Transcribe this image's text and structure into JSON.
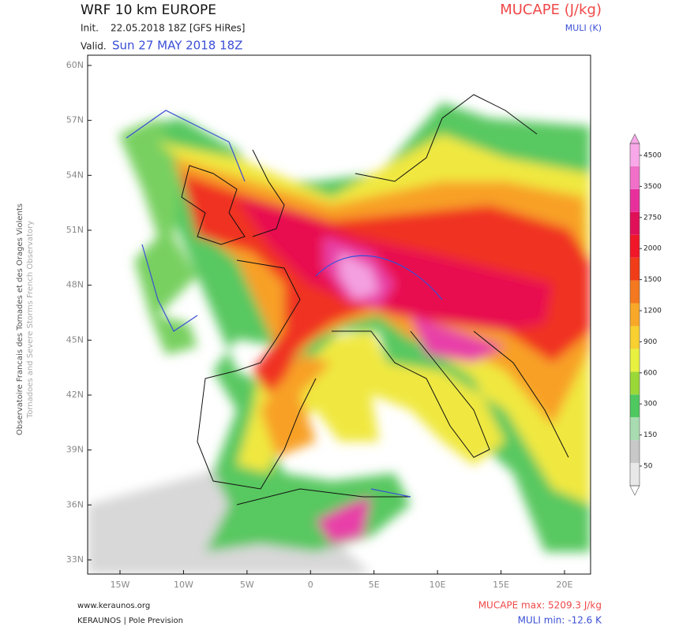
{
  "header": {
    "title": "WRF 10 km EUROPE",
    "init_label": "Init.",
    "init": "22.05.2018 18Z [GFS HiRes]",
    "valid_label": "Valid.",
    "valid": "Sun 27 MAY 2018 18Z",
    "field": "MUCAPE (J/kg)",
    "contour": "MULI (K)"
  },
  "map": {
    "lat_labels": [
      "60N",
      "57N",
      "54N",
      "51N",
      "48N",
      "45N",
      "42N",
      "39N",
      "36N",
      "33N"
    ],
    "lon_labels": [
      "15W",
      "10W",
      "5W",
      "0",
      "5E",
      "10E",
      "15E",
      "20E"
    ]
  },
  "colorbar": {
    "ticks": [
      50,
      150,
      300,
      600,
      900,
      1200,
      1500,
      2000,
      2750,
      3500,
      4500
    ],
    "colors": [
      "#e8e8e8",
      "#c8c8c8",
      "#a8dcb0",
      "#50c860",
      "#9ad838",
      "#e8f040",
      "#f8d030",
      "#f8a828",
      "#f47820",
      "#f03c18",
      "#f01828",
      "#e01058",
      "#e8309c",
      "#f070c8",
      "#f8a8e8"
    ]
  },
  "side": {
    "line1": "Observatoire Francais des Tornades et des Orages Violents",
    "line2": "Tornadoes and Severe Storms French Observatory"
  },
  "footer": {
    "url": "www.keraunos.org",
    "org": "KERAUNOS | Pole Prevision",
    "max": "MUCAPE max: 5209.3 J/kg",
    "min": "MULI min: -12.6 K"
  }
}
